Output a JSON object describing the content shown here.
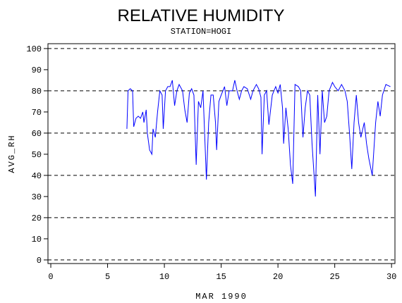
{
  "chart_data": {
    "type": "line",
    "title": "RELATIVE HUMIDITY",
    "subtitle": "STATION=HOGI",
    "x_label": "MAR 1990",
    "y_label": "AVG_RH",
    "x": [
      6.7,
      6.8,
      7.0,
      7.2,
      7.3,
      7.5,
      7.7,
      7.9,
      8.1,
      8.2,
      8.4,
      8.5,
      8.6,
      8.7,
      8.9,
      9.0,
      9.2,
      9.4,
      9.6,
      9.8,
      9.9,
      10.1,
      10.3,
      10.5,
      10.7,
      10.9,
      11.1,
      11.3,
      11.6,
      11.8,
      12.0,
      12.2,
      12.4,
      12.6,
      12.8,
      13.0,
      13.2,
      13.4,
      13.7,
      13.9,
      14.1,
      14.3,
      14.5,
      14.6,
      14.8,
      15.0,
      15.3,
      15.5,
      15.7,
      16.0,
      16.2,
      16.4,
      16.6,
      16.8,
      17.0,
      17.3,
      17.6,
      17.8,
      18.1,
      18.3,
      18.5,
      18.6,
      18.8,
      19.0,
      19.2,
      19.5,
      19.8,
      20.0,
      20.2,
      20.4,
      20.5,
      20.7,
      20.9,
      21.1,
      21.3,
      21.5,
      21.8,
      22.0,
      22.2,
      22.4,
      22.6,
      22.8,
      23.0,
      23.3,
      23.5,
      23.7,
      23.9,
      24.1,
      24.3,
      24.5,
      24.8,
      25.0,
      25.3,
      25.6,
      25.9,
      26.1,
      26.3,
      26.5,
      26.7,
      26.9,
      27.1,
      27.3,
      27.6,
      27.8,
      28.0,
      28.3,
      28.6,
      28.8,
      29.0,
      29.2,
      29.5,
      29.9
    ],
    "series": [
      {
        "name": "AVG_RH",
        "color": "#0000ff",
        "values": [
          62,
          80,
          81,
          80,
          63,
          67,
          68,
          67,
          70,
          65,
          71,
          60,
          56,
          52,
          50,
          62,
          58,
          70,
          80,
          78,
          62,
          80,
          82,
          82,
          85,
          73,
          80,
          83,
          80,
          71,
          65,
          79,
          81,
          78,
          45,
          75,
          72,
          80,
          38,
          65,
          78,
          78,
          65,
          52,
          75,
          78,
          82,
          73,
          80,
          80,
          85,
          80,
          76,
          80,
          82,
          81,
          76,
          80,
          83,
          81,
          77,
          50,
          78,
          80,
          64,
          78,
          82,
          79,
          83,
          72,
          55,
          72,
          62,
          45,
          36,
          83,
          82,
          80,
          58,
          72,
          80,
          78,
          55,
          30,
          78,
          50,
          80,
          65,
          68,
          80,
          84,
          82,
          80,
          83,
          80,
          75,
          60,
          43,
          65,
          78,
          65,
          58,
          65,
          55,
          48,
          40,
          65,
          75,
          68,
          78,
          83,
          82
        ]
      }
    ],
    "xlim": [
      -0.25,
      30.3
    ],
    "ylim": [
      -1.7,
      102.3
    ],
    "xticks": [
      0,
      5,
      10,
      15,
      20,
      25,
      30
    ],
    "yticks": [
      0,
      10,
      20,
      30,
      40,
      50,
      60,
      70,
      80,
      90,
      100
    ],
    "grid": true
  }
}
